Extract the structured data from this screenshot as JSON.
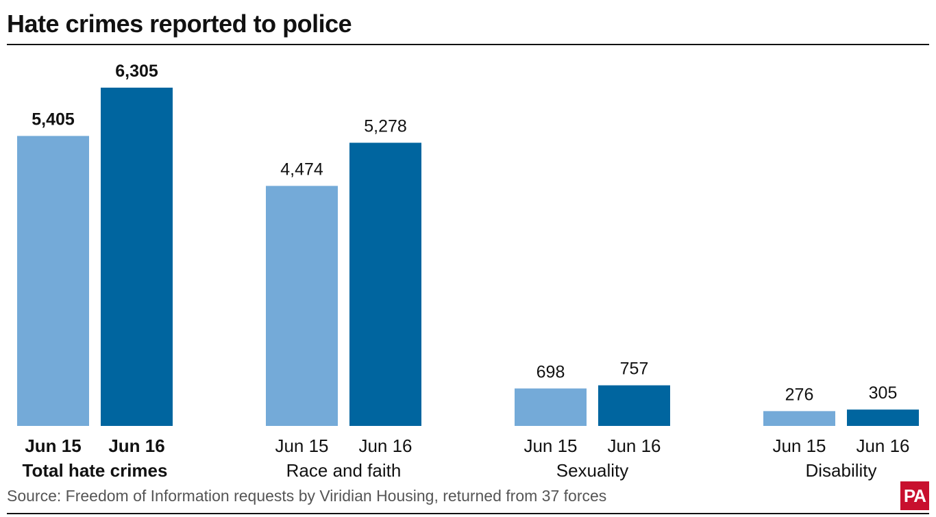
{
  "title": "Hate crimes reported to police",
  "source": "Source: Freedom of Information requests by Viridian Housing, returned from 37 forces",
  "logo": "PA",
  "colors": {
    "jun15": "#74aad8",
    "jun16": "#00659f",
    "text": "#111111",
    "logo_bg": "#c8102e"
  },
  "chart_data": {
    "type": "bar",
    "title": "Hate crimes reported to police",
    "categories": [
      "Total hate crimes",
      "Race and faith",
      "Sexuality",
      "Disability"
    ],
    "bold_category": "Total hate crimes",
    "series": [
      {
        "name": "Jun 15",
        "values": [
          5405,
          4474,
          698,
          276
        ],
        "labels": [
          "5,405",
          "4,474",
          "698",
          "276"
        ]
      },
      {
        "name": "Jun 16",
        "values": [
          6305,
          5278,
          757,
          305
        ],
        "labels": [
          "6,305",
          "5,278",
          "757",
          "305"
        ]
      }
    ],
    "xlabel": "",
    "ylabel": "",
    "ylim": [
      0,
      6305
    ],
    "grid": false,
    "legend": "none"
  }
}
